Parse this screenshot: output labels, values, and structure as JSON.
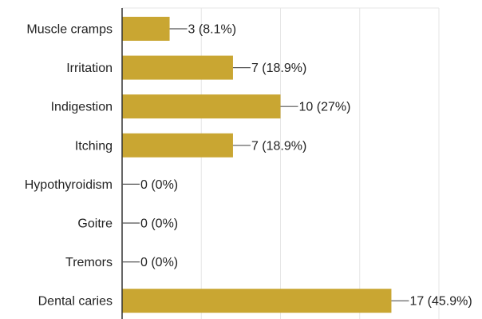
{
  "chart_data": {
    "type": "bar",
    "orientation": "horizontal",
    "categories": [
      "Muscle cramps",
      "Irritation",
      "Indigestion",
      "Itching",
      "Hypothyroidism",
      "Goitre",
      "Tremors",
      "Dental caries"
    ],
    "values": [
      3,
      7,
      10,
      7,
      0,
      0,
      0,
      17
    ],
    "data_labels": [
      "3 (8.1%)",
      "7 (18.9%)",
      "10 (27%)",
      "7 (18.9%)",
      "0 (0%)",
      "0 (0%)",
      "0 (0%)",
      "17 (45.9%)"
    ],
    "title": "",
    "xlabel": "",
    "ylabel": "",
    "xlim": [
      0,
      20
    ],
    "gridlines": [
      0,
      5,
      10,
      15,
      20
    ],
    "grid": true,
    "legend": "none",
    "colors": {
      "bar": "#c9a632",
      "grid": "#e6e6e6",
      "axis": "#333333",
      "leader": "#555555",
      "text": "#222222"
    }
  }
}
